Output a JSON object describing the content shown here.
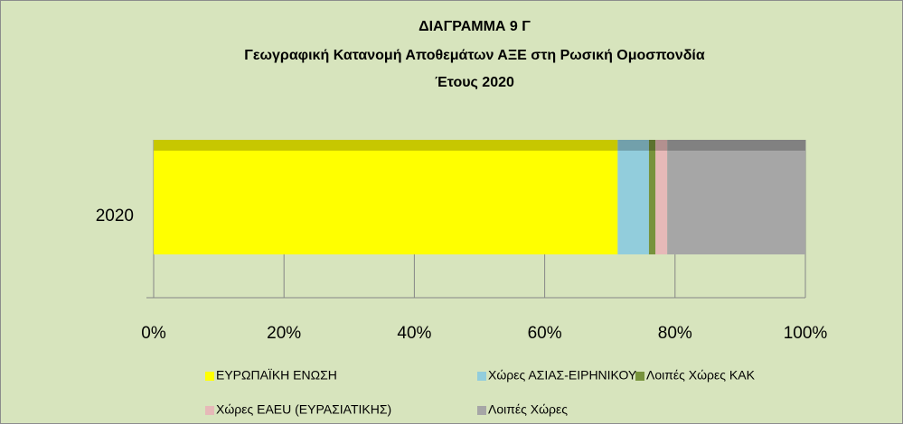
{
  "chart_data": {
    "type": "stacked_barh",
    "title": [
      "ΔΙΑΓΡΑΜΜΑ 9 Γ",
      "Γεωγραφική Κατανομή Αποθεμάτων ΑΞΕ στη Ρωσική Ομοσπονδία",
      "Έτους 2020"
    ],
    "categories": [
      "2020"
    ],
    "series": [
      {
        "name": "ΕΥΡΩΠΑΪΚΗ ΕΝΩΣΗ",
        "color": "#ffff00",
        "values": [
          71.2
        ]
      },
      {
        "name": "Χώρες ΑΣΙΑΣ-ΕΙΡΗΝΙΚΟΥ",
        "color": "#92cddc",
        "values": [
          4.8
        ]
      },
      {
        "name": "Λοιπές Χώρες ΚΑΚ",
        "color": "#77933c",
        "values": [
          1.0
        ]
      },
      {
        "name": "Χώρες ΕΑEU (ΕΥΡΑΣΙΑΤΙΚΗΣ)",
        "color": "#e6b9b8",
        "values": [
          1.8
        ]
      },
      {
        "name": "Λοιπές Χώρες",
        "color": "#a6a6a6",
        "values": [
          21.2
        ]
      }
    ],
    "xlim": [
      0,
      100
    ],
    "xticks": [
      {
        "value": 0,
        "label": "0%"
      },
      {
        "value": 20,
        "label": "20%"
      },
      {
        "value": 40,
        "label": "40%"
      },
      {
        "value": 60,
        "label": "60%"
      },
      {
        "value": 80,
        "label": "80%"
      },
      {
        "value": 100,
        "label": "100%"
      }
    ],
    "grid": true
  }
}
